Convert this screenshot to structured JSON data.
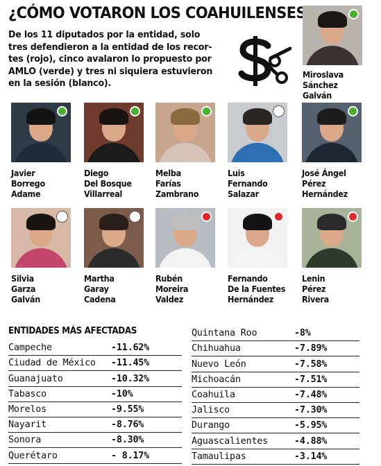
{
  "title": "¿CÓMO VOTARON LOS COAHUILENSES?",
  "intro_lines": [
    "De los 11 diputados por la entidad, solo",
    "tres defendieron a la entidad de los recor-",
    "tes (rojo), cinco avalaron lo propuesto por",
    "AMLO (verde) y tres ni siquiera estuvieron",
    "en la sesión (blanco)."
  ],
  "logo": {
    "icon": "dollar-scissors-icon"
  },
  "legend_colors": {
    "green": "#4caf2f",
    "red": "#e3262b",
    "white": "#ffffff"
  },
  "deputies": [
    {
      "name": [
        "Miroslava",
        "Sánchez",
        "Galván"
      ],
      "vote": "green"
    },
    {
      "name": [
        "Javier",
        "Borrego",
        "Adame"
      ],
      "vote": "green"
    },
    {
      "name": [
        "Diego",
        "Del Bosque",
        "Villarreal"
      ],
      "vote": "green"
    },
    {
      "name": [
        "Melba",
        "Farías",
        "Zambrano"
      ],
      "vote": "green"
    },
    {
      "name": [
        "Luis",
        "Fernando",
        "Salazar"
      ],
      "vote": "white"
    },
    {
      "name": [
        "José Ángel",
        "Pérez",
        "Hernández"
      ],
      "vote": "green"
    },
    {
      "name": [
        "Silvia",
        "Garza",
        "Galván"
      ],
      "vote": "white"
    },
    {
      "name": [
        "Martha",
        "Garay",
        "Cadena"
      ],
      "vote": "white"
    },
    {
      "name": [
        "Rubén",
        "Moreira",
        "Valdez"
      ],
      "vote": "red"
    },
    {
      "name": [
        "Fernando",
        "De la Fuentes",
        "Hernández"
      ],
      "vote": "red"
    },
    {
      "name": [
        "Lenin",
        "Pérez",
        "Rivera"
      ],
      "vote": "red"
    }
  ],
  "table_title": "ENTIDADES MÁS AFECTADAS",
  "table_left": [
    {
      "state": "Campeche",
      "value": "-11.62%"
    },
    {
      "state": "Ciudad de México",
      "value": "-11.45%"
    },
    {
      "state": "Guanajuato",
      "value": "-10.32%"
    },
    {
      "state": "Tabasco",
      "value": "-10%"
    },
    {
      "state": "Morelos",
      "value": "-9.55%"
    },
    {
      "state": "Nayarit",
      "value": "-8.76%"
    },
    {
      "state": "Sonora",
      "value": "-8.30%"
    },
    {
      "state": "Querétaro",
      "value": "- 8.17%"
    }
  ],
  "table_right": [
    {
      "state": "Quintana Roo",
      "value": "-8%"
    },
    {
      "state": "Chihuahua",
      "value": "-7.89%"
    },
    {
      "state": "Nuevo León",
      "value": "-7.58%"
    },
    {
      "state": "Michoacán",
      "value": "-7.51%"
    },
    {
      "state": "Coahuila",
      "value": "-7.48%"
    },
    {
      "state": "Jalisco",
      "value": "-7.30%"
    },
    {
      "state": "Durango",
      "value": "-5.95%"
    },
    {
      "state": "Aguascalientes",
      "value": "-4.88%"
    },
    {
      "state": "Tamaulipas",
      "value": "-3.14%"
    }
  ]
}
